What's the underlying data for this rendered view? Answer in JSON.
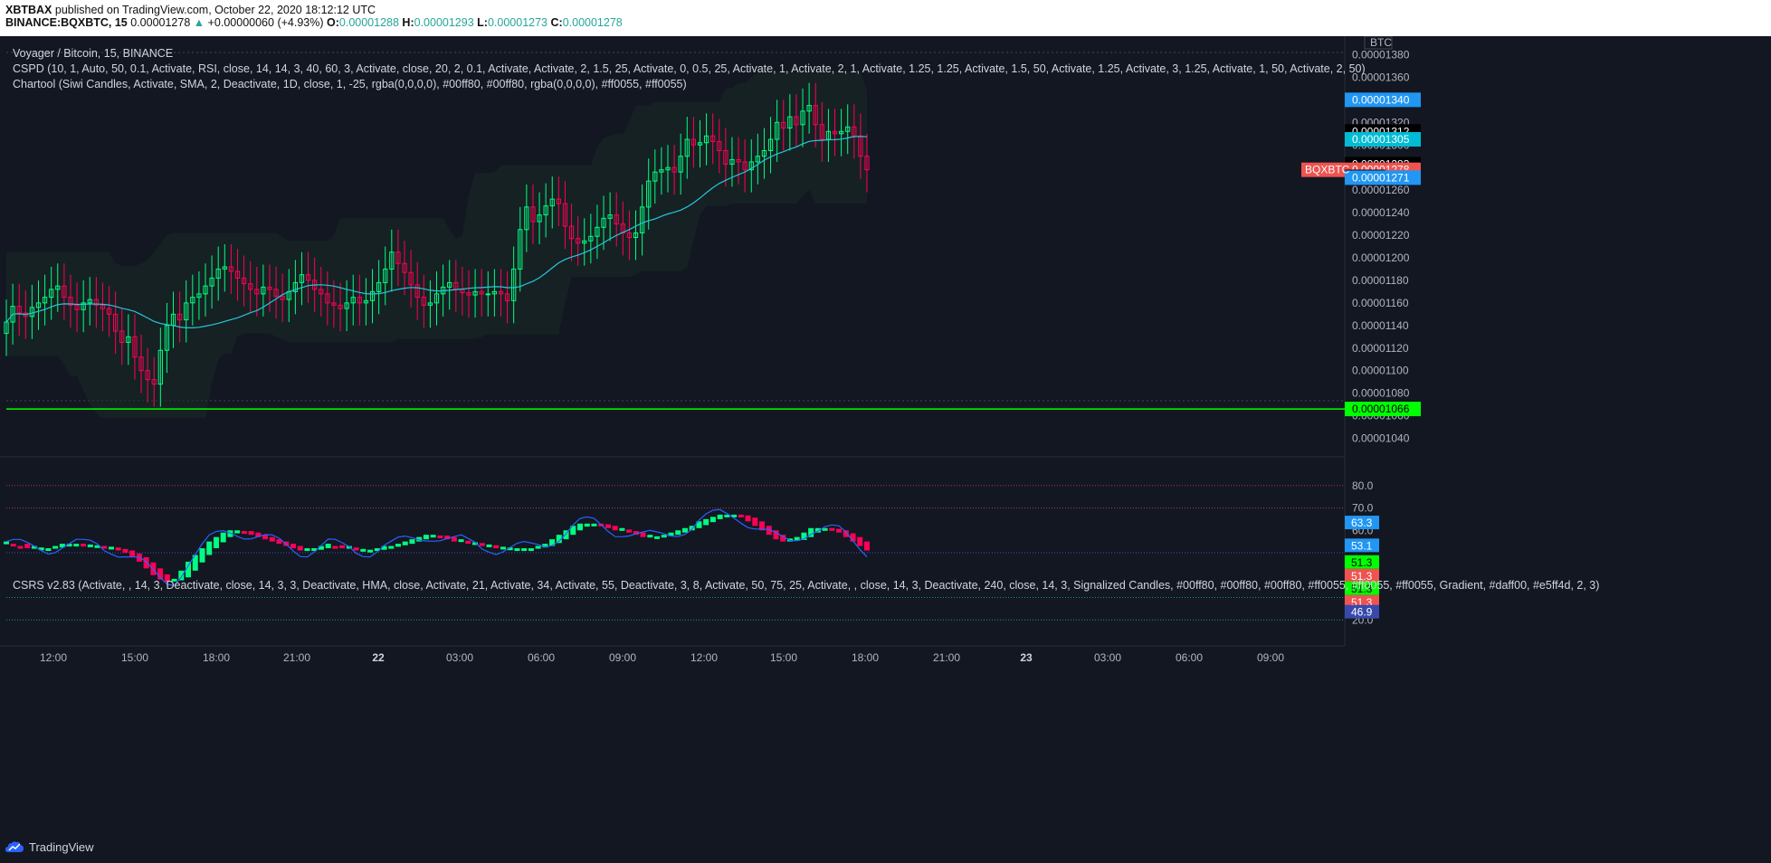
{
  "header": {
    "publisher": "XBTBAX",
    "published_text": "published on TradingView.com, October 22, 2020 18:12:12 UTC",
    "symbol": "BINANCE:BQXBTC, 15",
    "last": "0.00001278",
    "change_arrow": "▲",
    "change": "+0.00000060 (+4.93%)",
    "o_label": "O:",
    "o": "0.00001288",
    "h_label": "H:",
    "h": "0.00001293",
    "l_label": "L:",
    "l": "0.00001273",
    "c_label": "C:",
    "c": "0.00001278"
  },
  "legend": {
    "title": "Voyager / Bitcoin, 15, BINANCE",
    "cspd": "CSPD (10, 1, Auto, 50, 0.1, Activate, RSI, close, 14, 14, 3, 40, 60, 3, Activate, close, 20, 2, 0.1, Activate, Activate, 2, 1.5, 25, Activate, 0, 0.5, 25, Activate, 1, Activate, 2, 1, Activate, 1.25, 1.25, Activate, 1.5, 50, Activate, 1.25, Activate, 3, 1.25, Activate, 1, 50, Activate, 2, 50)",
    "chartool": "Chartool (Siwi Candles, Activate, SMA, 2, Deactivate, 1D, close, 1, -25, rgba(0,0,0,0), #00ff80, #00ff80, rgba(0,0,0,0), #ff0055, #ff0055)",
    "csrs": "CSRS v2.83 (Activate, , 14, 3, Deactivate, close, 14, 3, 3, Deactivate, HMA, close, Activate, 21, Activate, 34, Activate, 55, Deactivate, 3, 8, Activate, 50, 75, 25, Activate, , close, 14, 3, Deactivate, 240, close, 14, 3, Signalized Candles, #00ff80, #00ff80, #00ff80, #ff0055, #ff0055, #ff0055, Gradient, #daff00, #e5ff4d, 2, 3)"
  },
  "footer": {
    "brand": "TradingView"
  },
  "colors": {
    "background": "#131722",
    "bull": "#00ff80",
    "bear": "#ff0055",
    "ma": "#26c6da",
    "support": "#00ff00",
    "rsi_line": "#2962ff",
    "label_blue": "#2196f3",
    "label_teal": "#00bcd4",
    "label_red": "#ef5350"
  },
  "chart_data": [
    {
      "type": "candlestick",
      "title": "Voyager / Bitcoin, 15, BINANCE",
      "currency_label": "BTC",
      "ylim": [
        1.03e-05,
        1.39e-05
      ],
      "y_ticks": [
        "0.00001380",
        "0.00001360",
        "0.00001340",
        "0.00001320",
        "0.00001300",
        "0.00001280",
        "0.00001260",
        "0.00001240",
        "0.00001220",
        "0.00001200",
        "0.00001180",
        "0.00001160",
        "0.00001140",
        "0.00001120",
        "0.00001100",
        "0.00001080",
        "0.00001060",
        "0.00001040"
      ],
      "x_ticks": [
        "12:00",
        "15:00",
        "18:00",
        "21:00",
        "22",
        "03:00",
        "06:00",
        "09:00",
        "12:00",
        "15:00",
        "18:00",
        "21:00",
        "23",
        "03:00",
        "06:00",
        "09:00"
      ],
      "close": [
        1.143e-05,
        1.157e-05,
        1.151e-05,
        1.148e-05,
        1.156e-05,
        1.16e-05,
        1.165e-05,
        1.172e-05,
        1.175e-05,
        1.165e-05,
        1.158e-05,
        1.154e-05,
        1.16e-05,
        1.163e-05,
        1.158e-05,
        1.155e-05,
        1.15e-05,
        1.135e-05,
        1.125e-05,
        1.13e-05,
        1.112e-05,
        1.1e-05,
        1.092e-05,
        1.088e-05,
        1.118e-05,
        1.14e-05,
        1.15e-05,
        1.145e-05,
        1.16e-05,
        1.165e-05,
        1.168e-05,
        1.175e-05,
        1.182e-05,
        1.19e-05,
        1.192e-05,
        1.188e-05,
        1.182e-05,
        1.177e-05,
        1.172e-05,
        1.168e-05,
        1.174e-05,
        1.172e-05,
        1.166e-05,
        1.163e-05,
        1.17e-05,
        1.178e-05,
        1.185e-05,
        1.18e-05,
        1.172e-05,
        1.168e-05,
        1.16e-05,
        1.158e-05,
        1.155e-05,
        1.16e-05,
        1.165e-05,
        1.16e-05,
        1.162e-05,
        1.17e-05,
        1.178e-05,
        1.19e-05,
        1.205e-05,
        1.195e-05,
        1.187e-05,
        1.176e-05,
        1.165e-05,
        1.158e-05,
        1.16e-05,
        1.168e-05,
        1.174e-05,
        1.178e-05,
        1.172e-05,
        1.169e-05,
        1.167e-05,
        1.17e-05,
        1.168e-05,
        1.168e-05,
        1.17e-05,
        1.168e-05,
        1.162e-05,
        1.19e-05,
        1.225e-05,
        1.245e-05,
        1.232e-05,
        1.238e-05,
        1.246e-05,
        1.252e-05,
        1.248e-05,
        1.228e-05,
        1.217e-05,
        1.213e-05,
        1.215e-05,
        1.219e-05,
        1.227e-05,
        1.235e-05,
        1.238e-05,
        1.23e-05,
        1.222e-05,
        1.218e-05,
        1.222e-05,
        1.245e-05,
        1.268e-05,
        1.276e-05,
        1.278e-05,
        1.28e-05,
        1.276e-05,
        1.29e-05,
        1.305e-05,
        1.3e-05,
        1.302e-05,
        1.308e-05,
        1.303e-05,
        1.295e-05,
        1.283e-05,
        1.287e-05,
        1.285e-05,
        1.278e-05,
        1.285e-05,
        1.29e-05,
        1.295e-05,
        1.305e-05,
        1.32e-05,
        1.315e-05,
        1.325e-05,
        1.318e-05,
        1.33e-05,
        1.335e-05,
        1.318e-05,
        1.305e-05,
        1.312e-05,
        1.31e-05,
        1.312e-05,
        1.316e-05,
        1.308e-05,
        1.29e-05,
        1.278e-05
      ]
    },
    {
      "type": "line",
      "title": "CSRS v2.83",
      "ylim": [
        10,
        90
      ],
      "y_ticks": [
        "80.0",
        "70.0",
        "60.0",
        "20.0"
      ],
      "levels": [
        80,
        70,
        50,
        30,
        20
      ],
      "rsi": [
        55,
        54,
        53,
        52,
        52,
        52,
        52,
        53,
        54,
        54,
        54,
        53,
        53,
        53,
        52,
        52,
        51,
        50,
        48,
        46,
        43,
        40,
        38,
        37,
        38,
        42,
        46,
        49,
        52,
        55,
        57,
        59,
        60,
        60,
        59,
        58,
        57,
        56,
        55,
        54,
        53,
        52,
        51,
        51,
        52,
        53,
        54,
        53,
        52,
        52,
        51,
        51,
        51,
        52,
        53,
        53,
        54,
        55,
        56,
        57,
        58,
        58,
        57,
        56,
        55,
        55,
        54,
        54,
        53,
        53,
        52,
        52,
        52,
        52,
        52,
        52,
        53,
        54,
        56,
        58,
        60,
        62,
        63,
        63,
        63,
        62,
        61,
        60,
        60,
        59,
        58,
        57,
        57,
        57,
        58,
        59,
        60,
        61,
        62,
        64,
        65,
        66,
        67,
        67,
        67,
        66,
        64,
        62,
        60,
        58,
        56,
        55,
        55,
        57,
        59,
        61,
        61,
        61,
        60,
        59,
        57,
        55,
        53,
        51
      ]
    }
  ],
  "price_scale_labels": [
    {
      "text": "0.00001340",
      "kind": "blue"
    },
    {
      "text": "0.00001312",
      "kind": "dark"
    },
    {
      "text": "0.00001305",
      "kind": "teal"
    },
    {
      "text": "0.00001283",
      "kind": "dark"
    },
    {
      "text": "0.00001278",
      "kind": "red"
    },
    {
      "text": "0.000",
      "kind": "dark"
    },
    {
      "text": "02:50",
      "kind": "red"
    },
    {
      "text": "0.00001271",
      "kind": "blue"
    },
    {
      "text": "0.00001066",
      "kind": "green"
    },
    {
      "text": "BQXBTC",
      "kind": "red"
    }
  ],
  "osc_scale_labels": [
    {
      "text": "63.3",
      "kind": "blue"
    },
    {
      "text": "53.1",
      "kind": "blue"
    },
    {
      "text": "51.3",
      "kind": "green"
    },
    {
      "text": "51.3",
      "kind": "red"
    },
    {
      "text": "51.3",
      "kind": "green"
    },
    {
      "text": "51.3",
      "kind": "red"
    },
    {
      "text": "46.9",
      "kind": "indigo"
    }
  ]
}
